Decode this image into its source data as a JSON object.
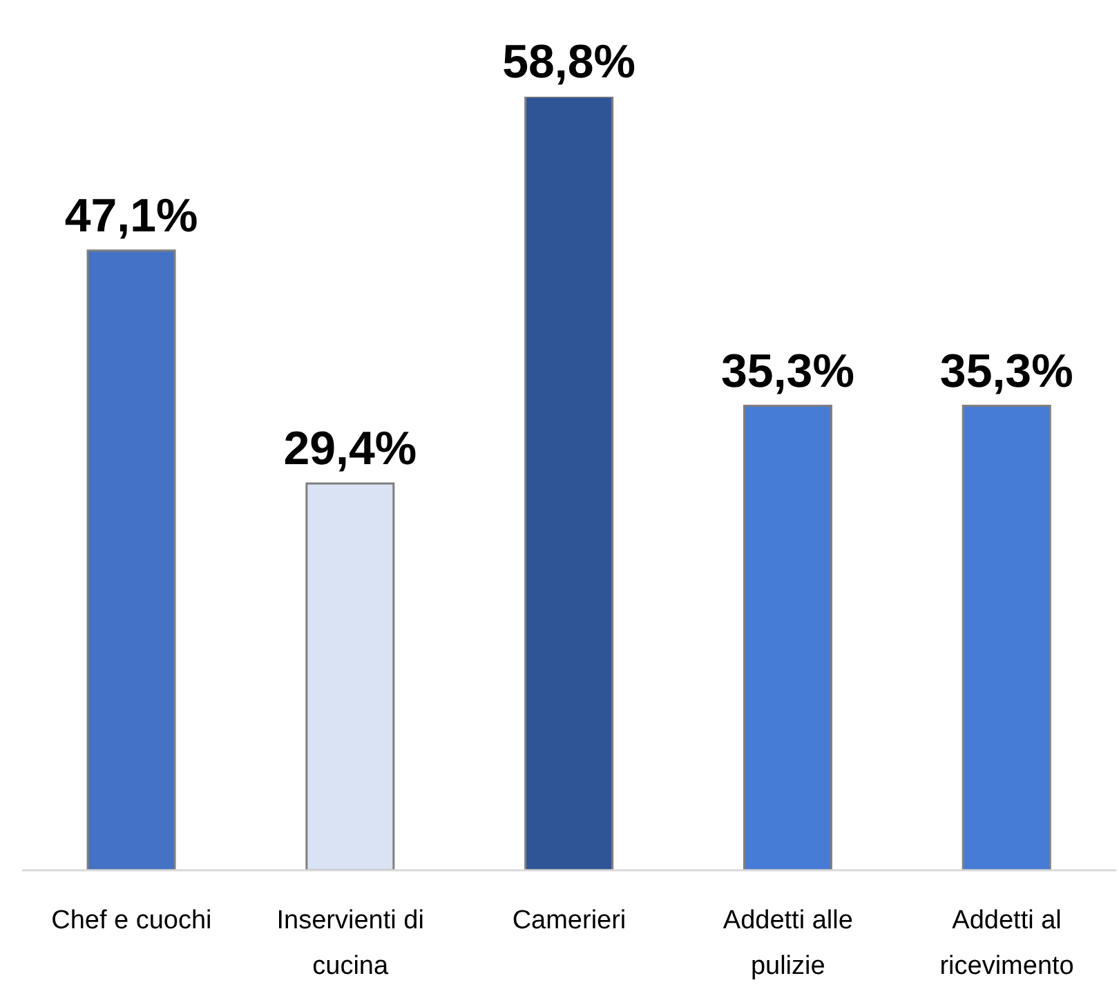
{
  "chart_data": {
    "type": "bar",
    "categories": [
      "Chef e cuochi",
      "Inservienti di cucina",
      "Camerieri",
      "Addetti alle pulizie",
      "Addetti al ricevimento"
    ],
    "values": [
      47.1,
      29.4,
      58.8,
      35.3,
      35.3
    ],
    "colors": [
      "#4472c4",
      "#dae3f3",
      "#2f5597",
      "#467bd6",
      "#467bd6"
    ],
    "value_labels": [
      "47,1%",
      "29,4%",
      "58,8%",
      "35,3%",
      "35,3%"
    ],
    "tick_labels": "x"
  }
}
